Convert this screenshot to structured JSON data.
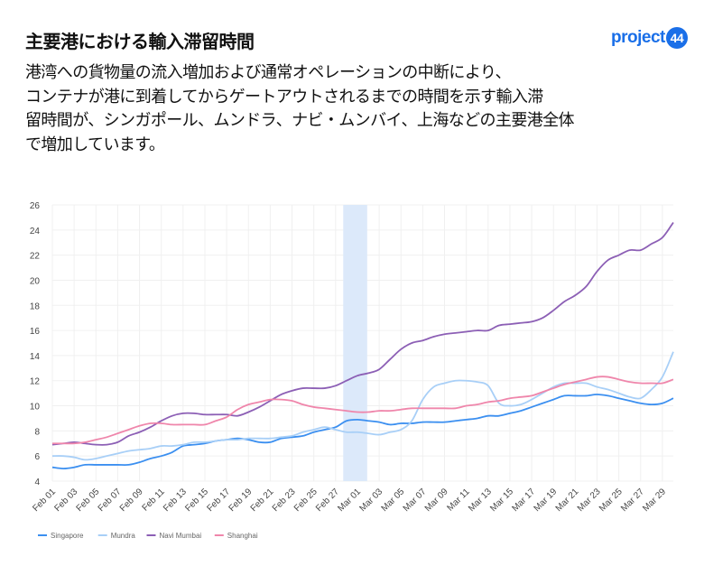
{
  "header": {
    "title": "主要港における輸入滞留時間",
    "description_lines": [
      "港湾への貨物量の流入増加および通常オペレーションの中断により、",
      "コンテナが港に到着してからゲートアウトされるまでの時間を示す輸入滞",
      "留時間が、シンガポール、ムンドラ、ナビ・ムンバイ、上海などの主要港全体",
      "で増加しています。"
    ],
    "logo_text": "project",
    "logo_number": "44"
  },
  "chart_data": {
    "type": "line",
    "title": "",
    "xlabel": "",
    "ylabel": "",
    "ylim": [
      4,
      26
    ],
    "yticks": [
      4,
      6,
      8,
      10,
      12,
      14,
      16,
      18,
      20,
      22,
      24,
      26
    ],
    "grid": true,
    "legend_position": "bottom-left",
    "x_tick_labels": [
      "Feb 01",
      "Feb 03",
      "Feb 05",
      "Feb 07",
      "Feb 09",
      "Feb 11",
      "Feb 13",
      "Feb 15",
      "Feb 17",
      "Feb 19",
      "Feb 21",
      "Feb 23",
      "Feb 25",
      "Feb 27",
      "Mar 01",
      "Mar 03",
      "Mar 05",
      "Mar 07",
      "Mar 09",
      "Mar 11",
      "Mar 13",
      "Mar 15",
      "Mar 17",
      "Mar 19",
      "Mar 21",
      "Mar 23",
      "Mar 25",
      "Mar 27",
      "Mar 29"
    ],
    "x_start": "Feb 01",
    "x_end": "Mar 30",
    "highlight_range": [
      "Feb 28",
      "Mar 02"
    ],
    "highlight_color": "#dce9fa",
    "series": [
      {
        "name": "Singapore",
        "color": "#3b8ff0",
        "values": [
          5.1,
          5.0,
          5.1,
          5.3,
          5.3,
          5.3,
          5.3,
          5.3,
          5.5,
          5.8,
          6.0,
          6.3,
          6.8,
          6.9,
          7.0,
          7.2,
          7.3,
          7.4,
          7.3,
          7.1,
          7.1,
          7.4,
          7.5,
          7.6,
          7.9,
          8.1,
          8.3,
          8.8,
          8.9,
          8.8,
          8.7,
          8.5,
          8.6,
          8.6,
          8.7,
          8.7,
          8.7,
          8.8,
          8.9,
          9.0,
          9.2,
          9.2,
          9.4,
          9.6,
          9.9,
          10.2,
          10.5,
          10.8,
          10.8,
          10.8,
          10.9,
          10.8,
          10.6,
          10.4,
          10.2,
          10.1,
          10.2,
          10.6
        ]
      },
      {
        "name": "Mundra",
        "color": "#a8cff7",
        "values": [
          6.0,
          6.0,
          5.9,
          5.7,
          5.8,
          6.0,
          6.2,
          6.4,
          6.5,
          6.6,
          6.8,
          6.8,
          6.9,
          7.1,
          7.1,
          7.2,
          7.3,
          7.3,
          7.4,
          7.4,
          7.4,
          7.5,
          7.6,
          7.9,
          8.1,
          8.3,
          8.1,
          7.9,
          7.9,
          7.8,
          7.7,
          7.9,
          8.1,
          8.8,
          10.5,
          11.5,
          11.8,
          12.0,
          12.0,
          11.9,
          11.6,
          10.2,
          10.0,
          10.1,
          10.5,
          11.0,
          11.5,
          11.8,
          11.8,
          11.8,
          11.5,
          11.3,
          11.0,
          10.7,
          10.6,
          11.3,
          12.3,
          14.3
        ]
      },
      {
        "name": "Navi Mumbai",
        "color": "#8c5fb5",
        "values": [
          6.9,
          7.0,
          7.1,
          7.0,
          6.9,
          6.9,
          7.1,
          7.6,
          7.9,
          8.3,
          8.8,
          9.2,
          9.4,
          9.4,
          9.3,
          9.3,
          9.3,
          9.2,
          9.5,
          9.9,
          10.4,
          10.9,
          11.2,
          11.4,
          11.4,
          11.4,
          11.6,
          12.0,
          12.4,
          12.6,
          12.9,
          13.7,
          14.5,
          15.0,
          15.2,
          15.5,
          15.7,
          15.8,
          15.9,
          16.0,
          16.0,
          16.4,
          16.5,
          16.6,
          16.7,
          17.0,
          17.6,
          18.3,
          18.8,
          19.5,
          20.7,
          21.6,
          22.0,
          22.4,
          22.4,
          22.9,
          23.4,
          24.6
        ]
      },
      {
        "name": "Shanghai",
        "color": "#ef86ab",
        "values": [
          7.0,
          7.0,
          7.0,
          7.1,
          7.3,
          7.5,
          7.8,
          8.1,
          8.4,
          8.6,
          8.6,
          8.5,
          8.5,
          8.5,
          8.5,
          8.8,
          9.1,
          9.7,
          10.1,
          10.3,
          10.5,
          10.5,
          10.4,
          10.1,
          9.9,
          9.8,
          9.7,
          9.6,
          9.5,
          9.5,
          9.6,
          9.6,
          9.7,
          9.8,
          9.8,
          9.8,
          9.8,
          9.8,
          10.0,
          10.1,
          10.3,
          10.4,
          10.6,
          10.7,
          10.8,
          11.1,
          11.4,
          11.7,
          11.9,
          12.1,
          12.3,
          12.3,
          12.1,
          11.9,
          11.8,
          11.8,
          11.8,
          12.1
        ]
      }
    ]
  }
}
